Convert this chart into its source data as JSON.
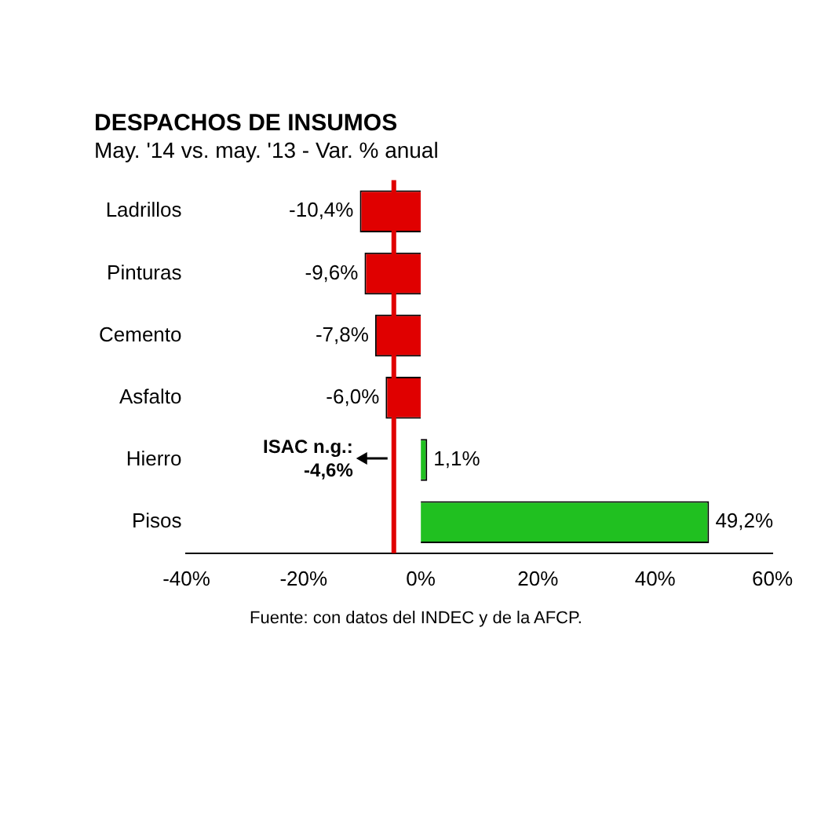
{
  "chart_data": {
    "type": "bar",
    "orientation": "horizontal",
    "title": "DESPACHOS DE INSUMOS",
    "subtitle": "May. '14 vs. may. '13 - Var. % anual",
    "categories": [
      "Ladrillos",
      "Pinturas",
      "Cemento",
      "Asfalto",
      "Hierro",
      "Pisos"
    ],
    "values": [
      -10.4,
      -9.6,
      -7.8,
      -6.0,
      1.1,
      49.2
    ],
    "colors": [
      "#e00000",
      "#e00000",
      "#e00000",
      "#e00000",
      "#20c020",
      "#20c020"
    ],
    "value_labels": [
      "-10,4%",
      "-9,6%",
      "-7,8%",
      "-6,0%",
      "1,1%",
      "49,2%"
    ],
    "xlim": [
      -40,
      60
    ],
    "xticks": [
      {
        "value": -40,
        "label": "-40%"
      },
      {
        "value": -20,
        "label": "-20%"
      },
      {
        "value": 0,
        "label": "0%"
      },
      {
        "value": 20,
        "label": "20%"
      },
      {
        "value": 40,
        "label": "40%"
      },
      {
        "value": 60,
        "label": "60%"
      }
    ],
    "ref_lines": [
      {
        "axis": "x",
        "value": -4.6,
        "label": "ISAC n.g.: -4,6%",
        "color": "#e00000"
      }
    ],
    "annotations": [
      "Fuente: con datos del INDEC y de la AFCP."
    ],
    "grid": false,
    "legend": false
  }
}
